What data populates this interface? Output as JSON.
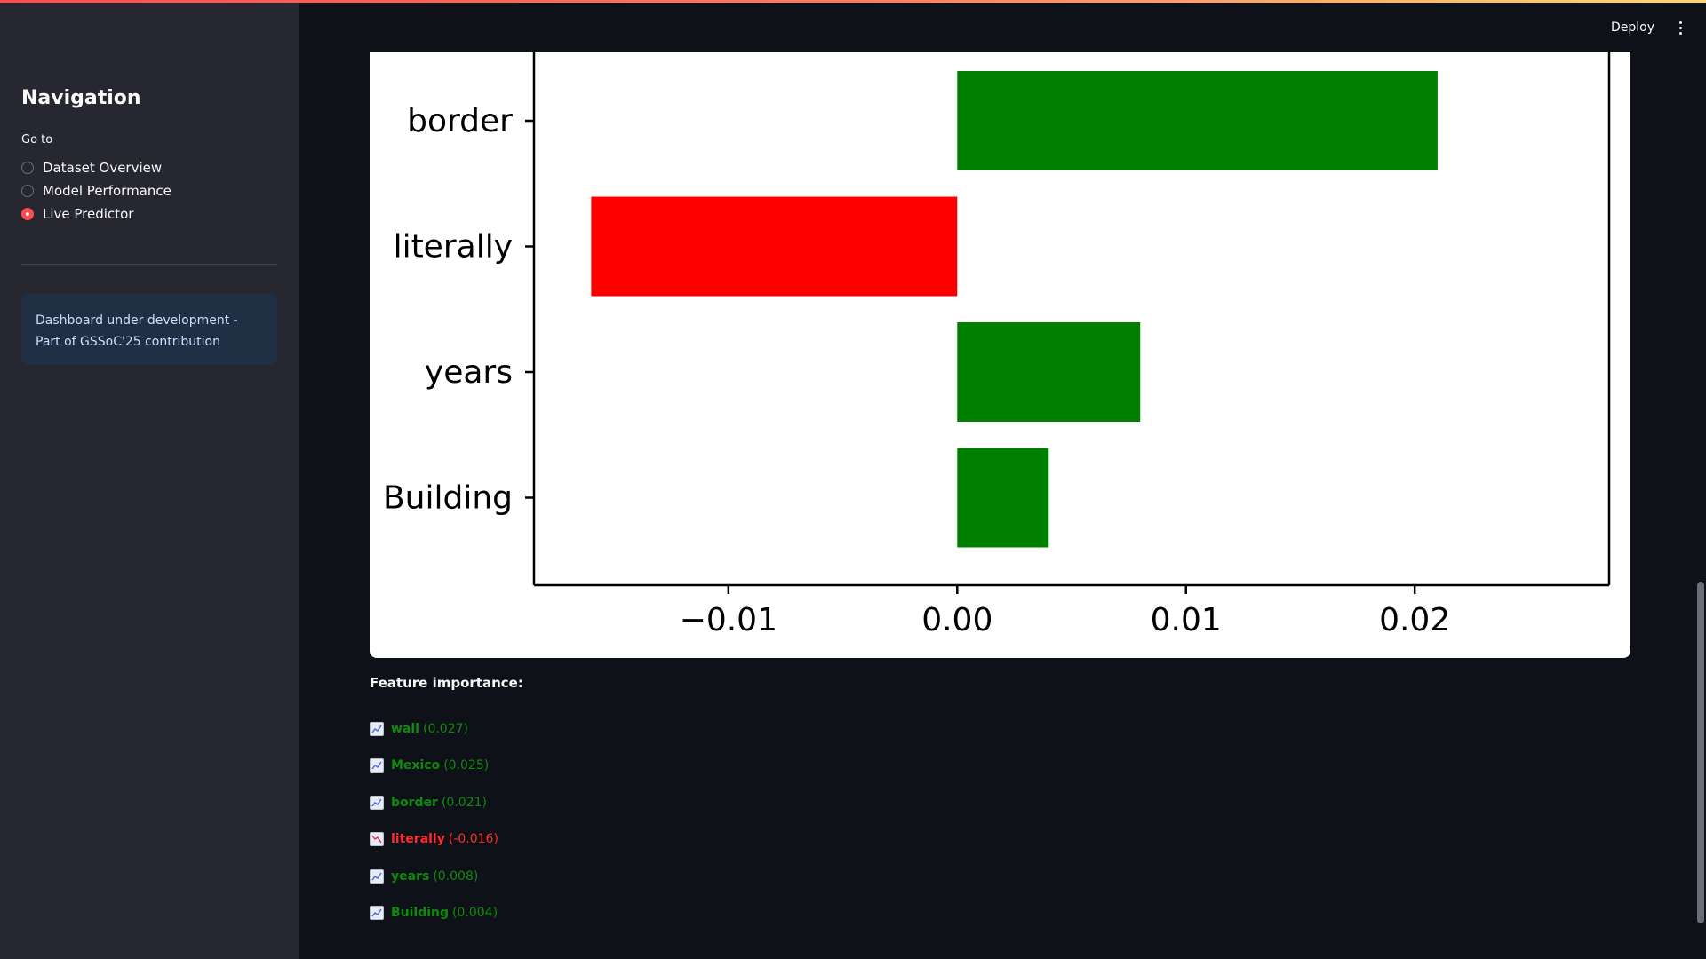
{
  "sidebar": {
    "title": "Navigation",
    "goto_label": "Go to",
    "options": [
      {
        "label": "Dataset Overview",
        "selected": false
      },
      {
        "label": "Model Performance",
        "selected": false
      },
      {
        "label": "Live Predictor",
        "selected": true
      }
    ],
    "info": "Dashboard under development - Part of GSSoC'25 contribution"
  },
  "header": {
    "deploy_label": "Deploy"
  },
  "chart_data": {
    "type": "bar",
    "orientation": "horizontal",
    "categories": [
      "border",
      "literally",
      "years",
      "Building"
    ],
    "values": [
      0.021,
      -0.016,
      0.008,
      0.004
    ],
    "colors": [
      "#008000",
      "#ff0000",
      "#008000",
      "#008000"
    ],
    "xlim": [
      -0.0185,
      0.0285
    ],
    "xticks": [
      -0.01,
      0.0,
      0.01,
      0.02
    ],
    "xtick_labels": [
      "−0.01",
      "0.00",
      "0.01",
      "0.02"
    ],
    "positive_color": "#008000",
    "negative_color": "#ff0000"
  },
  "feature_importance": {
    "title": "Feature importance:",
    "items": [
      {
        "word": "wall",
        "score": "(0.027)",
        "sign": "pos",
        "icon": "chart-increasing-icon"
      },
      {
        "word": "Mexico",
        "score": "(0.025)",
        "sign": "pos",
        "icon": "chart-increasing-icon"
      },
      {
        "word": "border",
        "score": "(0.021)",
        "sign": "pos",
        "icon": "chart-increasing-icon"
      },
      {
        "word": "literally",
        "score": "(-0.016)",
        "sign": "neg",
        "icon": "chart-decreasing-icon"
      },
      {
        "word": "years",
        "score": "(0.008)",
        "sign": "pos",
        "icon": "chart-increasing-icon"
      },
      {
        "word": "Building",
        "score": "(0.004)",
        "sign": "pos",
        "icon": "chart-increasing-icon"
      }
    ]
  }
}
